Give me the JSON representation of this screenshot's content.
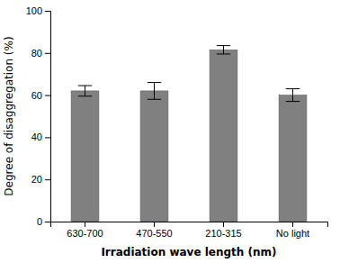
{
  "chart_data": {
    "type": "bar",
    "categories": [
      "630-700",
      "470-550",
      "210-315",
      "No light"
    ],
    "values": [
      62.0,
      62.0,
      81.5,
      60.0
    ],
    "errors": [
      2.5,
      4.0,
      2.0,
      3.0
    ],
    "color": "#808080",
    "ylabel": "Degree of disaggregation (%)",
    "xlabel": "Irradiation wave length (nm)",
    "ylim": [
      0,
      100
    ],
    "yticks": [
      0,
      20,
      40,
      60,
      80,
      100
    ]
  }
}
